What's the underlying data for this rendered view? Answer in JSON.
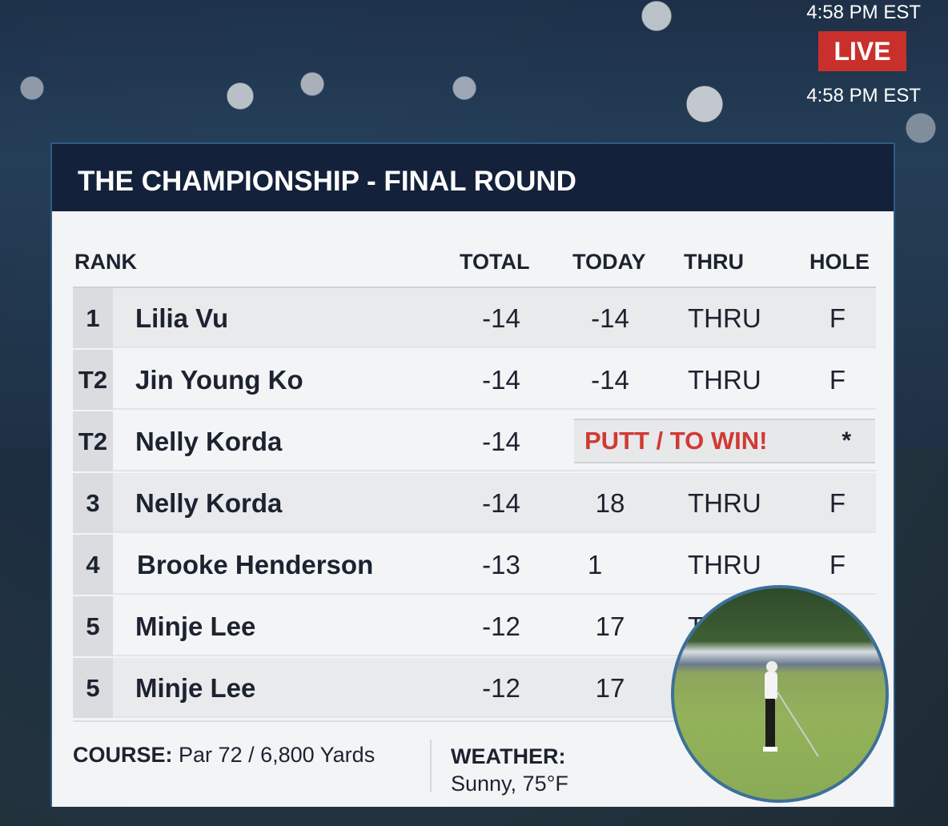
{
  "overlay": {
    "time_top": "4:58 PM EST",
    "live_label": "LIVE",
    "time_bottom": "4:58 PM EST"
  },
  "title": "THE CHAMPIONSHIP - FINAL ROUND",
  "columns": {
    "rank": "RANK",
    "total": "TOTAL",
    "today": "TODAY",
    "thru": "THRU",
    "hole": "HOLE"
  },
  "rows": [
    {
      "rank": "1",
      "name": "Lilia Vu",
      "total": "-14",
      "today": "-14",
      "thru": "THRU",
      "hole": "F"
    },
    {
      "rank": "T2",
      "name": "Jin Young Ko",
      "total": "-14",
      "today": "-14",
      "thru": "THRU",
      "hole": "F"
    },
    {
      "rank": "T2",
      "name": "Nelly Korda",
      "total": "-14",
      "status": "PUTT / TO WIN!",
      "hole": "*"
    },
    {
      "rank": "3",
      "name": "Nelly Korda",
      "total": "-14",
      "today": "18",
      "thru": "THRU",
      "hole": "F"
    },
    {
      "rank": "4",
      "name": "Brooke Henderson",
      "total": "-13",
      "today": "1",
      "thru": "THRU",
      "hole": "F"
    },
    {
      "rank": "5",
      "name": "Minje Lee",
      "total": "-12",
      "today": "17",
      "thru": "T"
    },
    {
      "rank": "5",
      "name": "Minje Lee",
      "total": "-12",
      "today": "17"
    }
  ],
  "footer": {
    "course_label": "COURSE:",
    "course_value": "Par 72 / 6,800 Yards",
    "weather_label": "WEATHER:",
    "weather_value": "Sunny, 75°F"
  },
  "colors": {
    "header_bg": "#14213a",
    "live": "#c9302c",
    "highlight_text": "#d03a34",
    "circle_border": "#3d7099"
  }
}
